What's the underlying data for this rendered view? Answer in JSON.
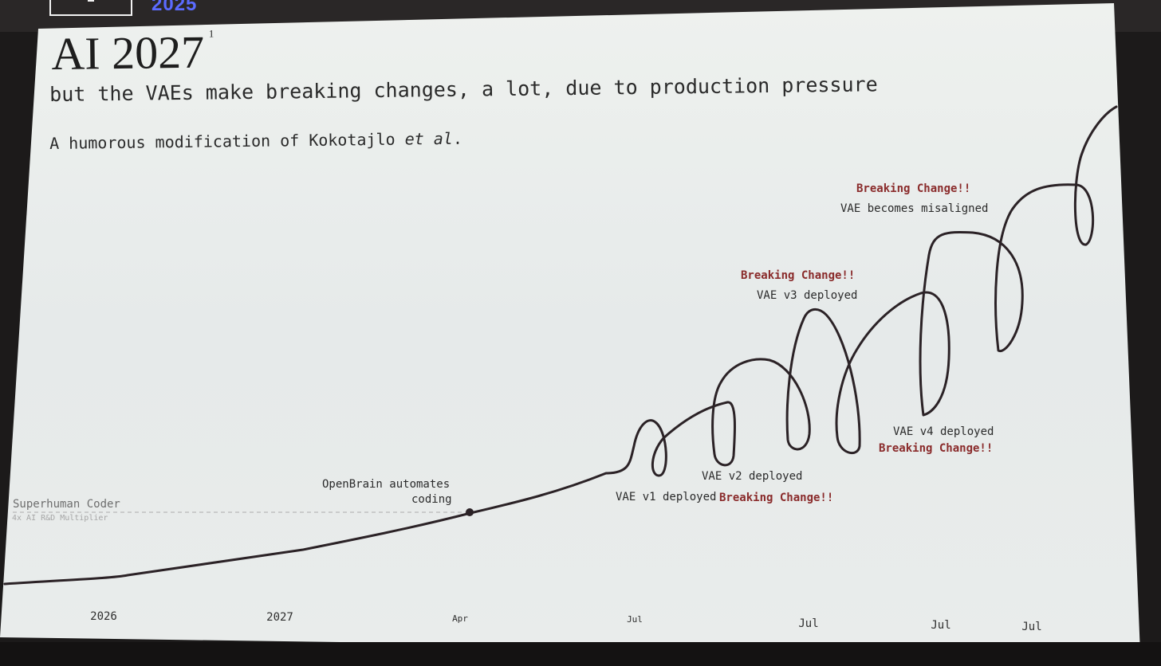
{
  "header": {
    "year_tag": "2025"
  },
  "slide": {
    "title": "AI 2027",
    "footnote_marker": "1",
    "subtitle": "but the VAEs make breaking changes, a lot, due to production pressure",
    "byline_prefix": "A humorous modification of Kokotajlo ",
    "byline_italic": "et al",
    "byline_suffix": "."
  },
  "chart": {
    "reference_line": {
      "label": "Superhuman Coder",
      "sublabel": "4x AI R&D Multiplier"
    },
    "milestone": {
      "line1": "OpenBrain automates",
      "line2": "coding"
    },
    "annotations": {
      "v1": "VAE v1 deployed",
      "v1_break": "Breaking Change!!",
      "v2": "VAE v2 deployed",
      "v3_break": "Breaking Change!!",
      "v3": "VAE v3 deployed",
      "v4": "VAE v4 deployed",
      "v4_break": "Breaking Change!!",
      "misaligned_break": "Breaking Change!!",
      "misaligned": "VAE becomes misaligned"
    },
    "x_ticks": [
      "2026",
      "2027",
      "Apr",
      "Jul",
      "Jul",
      "Jul",
      "Jul"
    ],
    "colors": {
      "line": "#2b2226",
      "accent_red": "#8a2b2b",
      "slide_bg": "#e9ede9"
    }
  }
}
